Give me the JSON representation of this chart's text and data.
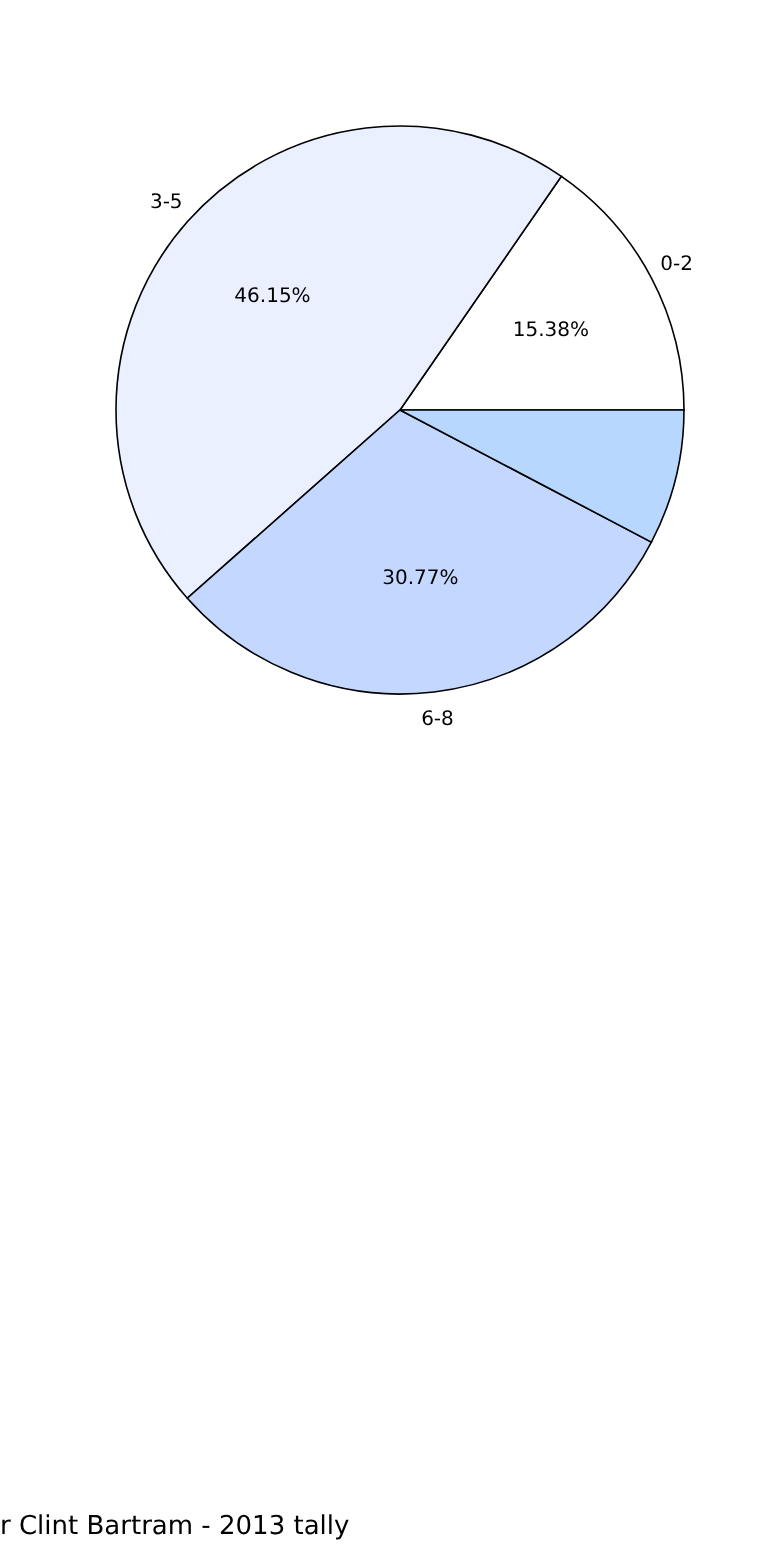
{
  "chart_data": {
    "type": "pie",
    "title": "r Clint Bartram - 2013 tally",
    "categories": [
      "0-2",
      "3-5",
      "6-8",
      null
    ],
    "values": [
      15.38,
      46.15,
      30.77,
      7.7
    ],
    "value_labels": [
      "15.38%",
      "46.15%",
      "30.77%",
      null
    ],
    "colors": [
      "#ffffff",
      "#eaf0ff",
      "#c4d8ff",
      "#b7d7ff"
    ]
  }
}
